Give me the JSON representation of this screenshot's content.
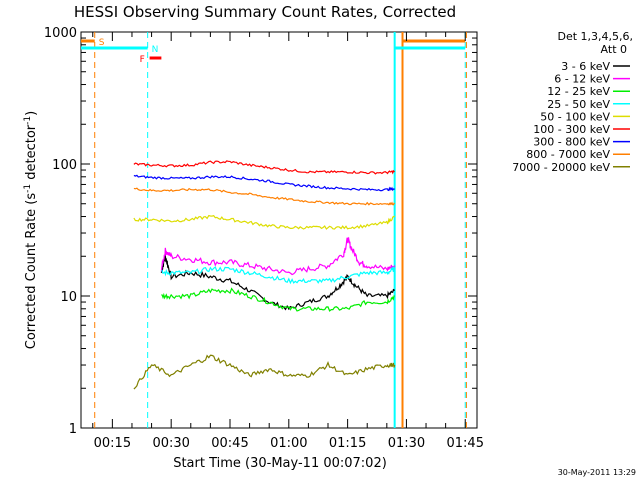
{
  "chart_data": {
    "type": "line",
    "title": "HESSI Observing Summary Count Rates, Corrected",
    "xlabel": "Start Time (30-May-11 00:07:02)",
    "ylabel_parts": [
      "Corrected Count Rate (s",
      "-1",
      " detector",
      "-1",
      ")"
    ],
    "xlim": [
      7.0,
      108.0
    ],
    "ylim": [
      1,
      1000
    ],
    "yscale": "log",
    "x_unit": "minutes after 00:00 UT, 30-May-11",
    "x_ticks": [
      {
        "label": "00:15",
        "value": 15
      },
      {
        "label": "00:30",
        "value": 30
      },
      {
        "label": "00:45",
        "value": 45
      },
      {
        "label": "01:00",
        "value": 60
      },
      {
        "label": "01:15",
        "value": 75
      },
      {
        "label": "01:30",
        "value": 90
      },
      {
        "label": "01:45",
        "value": 105
      }
    ],
    "y_ticks": [
      {
        "label": "1",
        "value": 1
      },
      {
        "label": "10",
        "value": 10
      },
      {
        "label": "100",
        "value": 100
      },
      {
        "label": "1000",
        "value": 1000
      }
    ],
    "legend": {
      "placement": "right",
      "header": [
        "Det 1,3,4,5,6,",
        "Att 0"
      ],
      "entries": [
        {
          "label": "3 - 6 keV",
          "color": "#000000"
        },
        {
          "label": "6 - 12 keV",
          "color": "#ff00ff"
        },
        {
          "label": "12 - 25 keV",
          "color": "#00ee00"
        },
        {
          "label": "25 - 50 keV",
          "color": "#00ffff"
        },
        {
          "label": "50 - 100 keV",
          "color": "#dddd00"
        },
        {
          "label": "100 - 300 keV",
          "color": "#ff0000"
        },
        {
          "label": "300 - 800 keV",
          "color": "#0000ff"
        },
        {
          "label": "800 - 7000 keV",
          "color": "#ff7f00"
        },
        {
          "label": "7000 - 20000 keV",
          "color": "#808000"
        }
      ]
    },
    "series": [
      {
        "color": "#000000",
        "x": [
          27.5,
          28.5,
          30,
          35,
          40,
          45,
          50,
          55,
          60,
          65,
          70,
          73,
          75,
          77,
          80,
          85,
          87
        ],
        "y": [
          15,
          20,
          14,
          15,
          14,
          13,
          11,
          9,
          8,
          9,
          10,
          12,
          14,
          12,
          10,
          10,
          11
        ]
      },
      {
        "color": "#ff00ff",
        "x": [
          27.5,
          28.5,
          30,
          35,
          40,
          45,
          50,
          55,
          60,
          65,
          70,
          74,
          75,
          76,
          78,
          80,
          85,
          87
        ],
        "y": [
          16,
          22,
          20,
          19,
          18,
          18,
          17,
          16,
          15,
          16,
          17,
          21,
          27,
          23,
          18,
          17,
          16,
          17
        ]
      },
      {
        "color": "#00ee00",
        "x": [
          27.5,
          30,
          35,
          40,
          45,
          50,
          55,
          60,
          65,
          70,
          75,
          80,
          85,
          87
        ],
        "y": [
          10,
          10,
          10,
          11,
          11,
          10,
          9,
          8,
          8,
          8,
          8,
          9,
          9,
          10
        ]
      },
      {
        "color": "#00ffff",
        "x": [
          27.5,
          30,
          35,
          40,
          45,
          50,
          55,
          60,
          65,
          70,
          75,
          80,
          85,
          87
        ],
        "y": [
          15,
          15,
          15,
          16,
          16,
          15,
          14,
          13,
          13,
          13,
          14,
          15,
          15,
          16
        ]
      },
      {
        "color": "#dddd00",
        "x": [
          20.5,
          25,
          30,
          35,
          40,
          45,
          50,
          55,
          60,
          65,
          70,
          75,
          80,
          85,
          87
        ],
        "y": [
          38,
          38,
          37,
          38,
          40,
          38,
          36,
          34,
          33,
          33,
          33,
          33,
          34,
          36,
          40
        ]
      },
      {
        "color": "#ff0000",
        "x": [
          20.5,
          25,
          30,
          35,
          40,
          45,
          50,
          55,
          60,
          65,
          70,
          75,
          80,
          85,
          87
        ],
        "y": [
          100,
          98,
          97,
          98,
          103,
          104,
          98,
          94,
          90,
          87,
          87,
          87,
          86,
          86,
          88
        ]
      },
      {
        "color": "#0000ff",
        "x": [
          20.5,
          25,
          30,
          35,
          40,
          45,
          50,
          55,
          60,
          65,
          70,
          75,
          80,
          85,
          87
        ],
        "y": [
          81,
          79,
          78,
          78,
          80,
          80,
          77,
          74,
          70,
          68,
          66,
          65,
          64,
          64,
          65
        ]
      },
      {
        "color": "#ff7f00",
        "x": [
          20.5,
          25,
          30,
          35,
          40,
          45,
          50,
          55,
          60,
          65,
          70,
          75,
          80,
          85,
          87
        ],
        "y": [
          65,
          63,
          63,
          64,
          64,
          61,
          59,
          56,
          54,
          52,
          51,
          50,
          50,
          50,
          50
        ]
      },
      {
        "color": "#808000",
        "x": [
          20.5,
          25,
          30,
          35,
          40,
          45,
          50,
          55,
          60,
          65,
          70,
          75,
          80,
          85,
          87
        ],
        "y": [
          2,
          3,
          2.5,
          3,
          3.5,
          3,
          2.5,
          2.8,
          2.5,
          2.5,
          3,
          2.5,
          2.8,
          3,
          3
        ]
      }
    ],
    "annotations": [
      {
        "label": "S",
        "color": "#ff7f00",
        "x": 10.5
      },
      {
        "label": "N",
        "color": "#00ffff",
        "x": 24.0
      },
      {
        "label": "F",
        "color": "#ff0000",
        "x": 24.0
      }
    ],
    "markers": {
      "saa_bars": [
        {
          "color": "#ff7f00",
          "x": [
            7.0,
            10.5
          ]
        },
        {
          "color": "#ff7f00",
          "x": [
            89.0,
            105.0
          ]
        }
      ],
      "night_bars": [
        {
          "color": "#00ffff",
          "x": [
            7.0,
            24.0
          ]
        },
        {
          "color": "#00ffff",
          "x": [
            87.0,
            105.0
          ]
        }
      ],
      "flare_bar": {
        "color": "#ff0000",
        "x": [
          24.5,
          27.5
        ]
      },
      "vertical_lines": [
        {
          "color": "#ff7f00",
          "x": 10.5,
          "style": "dashed"
        },
        {
          "color": "#00ffff",
          "x": 24.0,
          "style": "dashed"
        },
        {
          "color": "#00ffff",
          "x": 87.0,
          "style": "solid"
        },
        {
          "color": "#ff7f00",
          "x": 89.0,
          "style": "solid"
        },
        {
          "color": "#00ffff",
          "x": 105.0,
          "style": "dashed"
        },
        {
          "color": "#ff7f00",
          "x": 105.3,
          "style": "dashed"
        }
      ]
    }
  },
  "footer_timestamp": "30-May-2011 13:29"
}
